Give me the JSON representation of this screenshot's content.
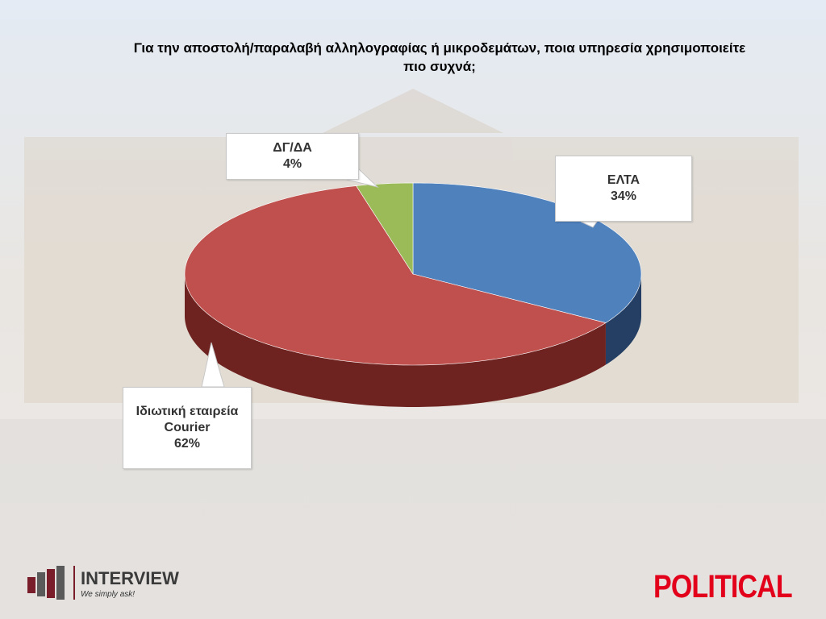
{
  "chart_data": {
    "type": "pie3d",
    "title": "Για την αποστολή/παραλαβή αλληλογραφίας ή μικροδεμάτων, ποια υπηρεσία χρησιμοποιείτε πιο συχνά;",
    "categories": [
      "ΕΛΤΑ",
      "Ιδιωτική εταιρεία Courier",
      "ΔΓ/ΔΑ"
    ],
    "values": [
      34,
      62,
      4
    ],
    "value_labels": [
      "34%",
      "62%",
      "4%"
    ],
    "colors": [
      "#4f81bd",
      "#c0504d",
      "#9bbb59"
    ],
    "side_colors": [
      "#243f63",
      "#6e2320",
      "#56702a"
    ]
  },
  "branding": {
    "interview": "INTERVIEW",
    "tagline": "We simply ask!",
    "political": "POLITICAL"
  }
}
